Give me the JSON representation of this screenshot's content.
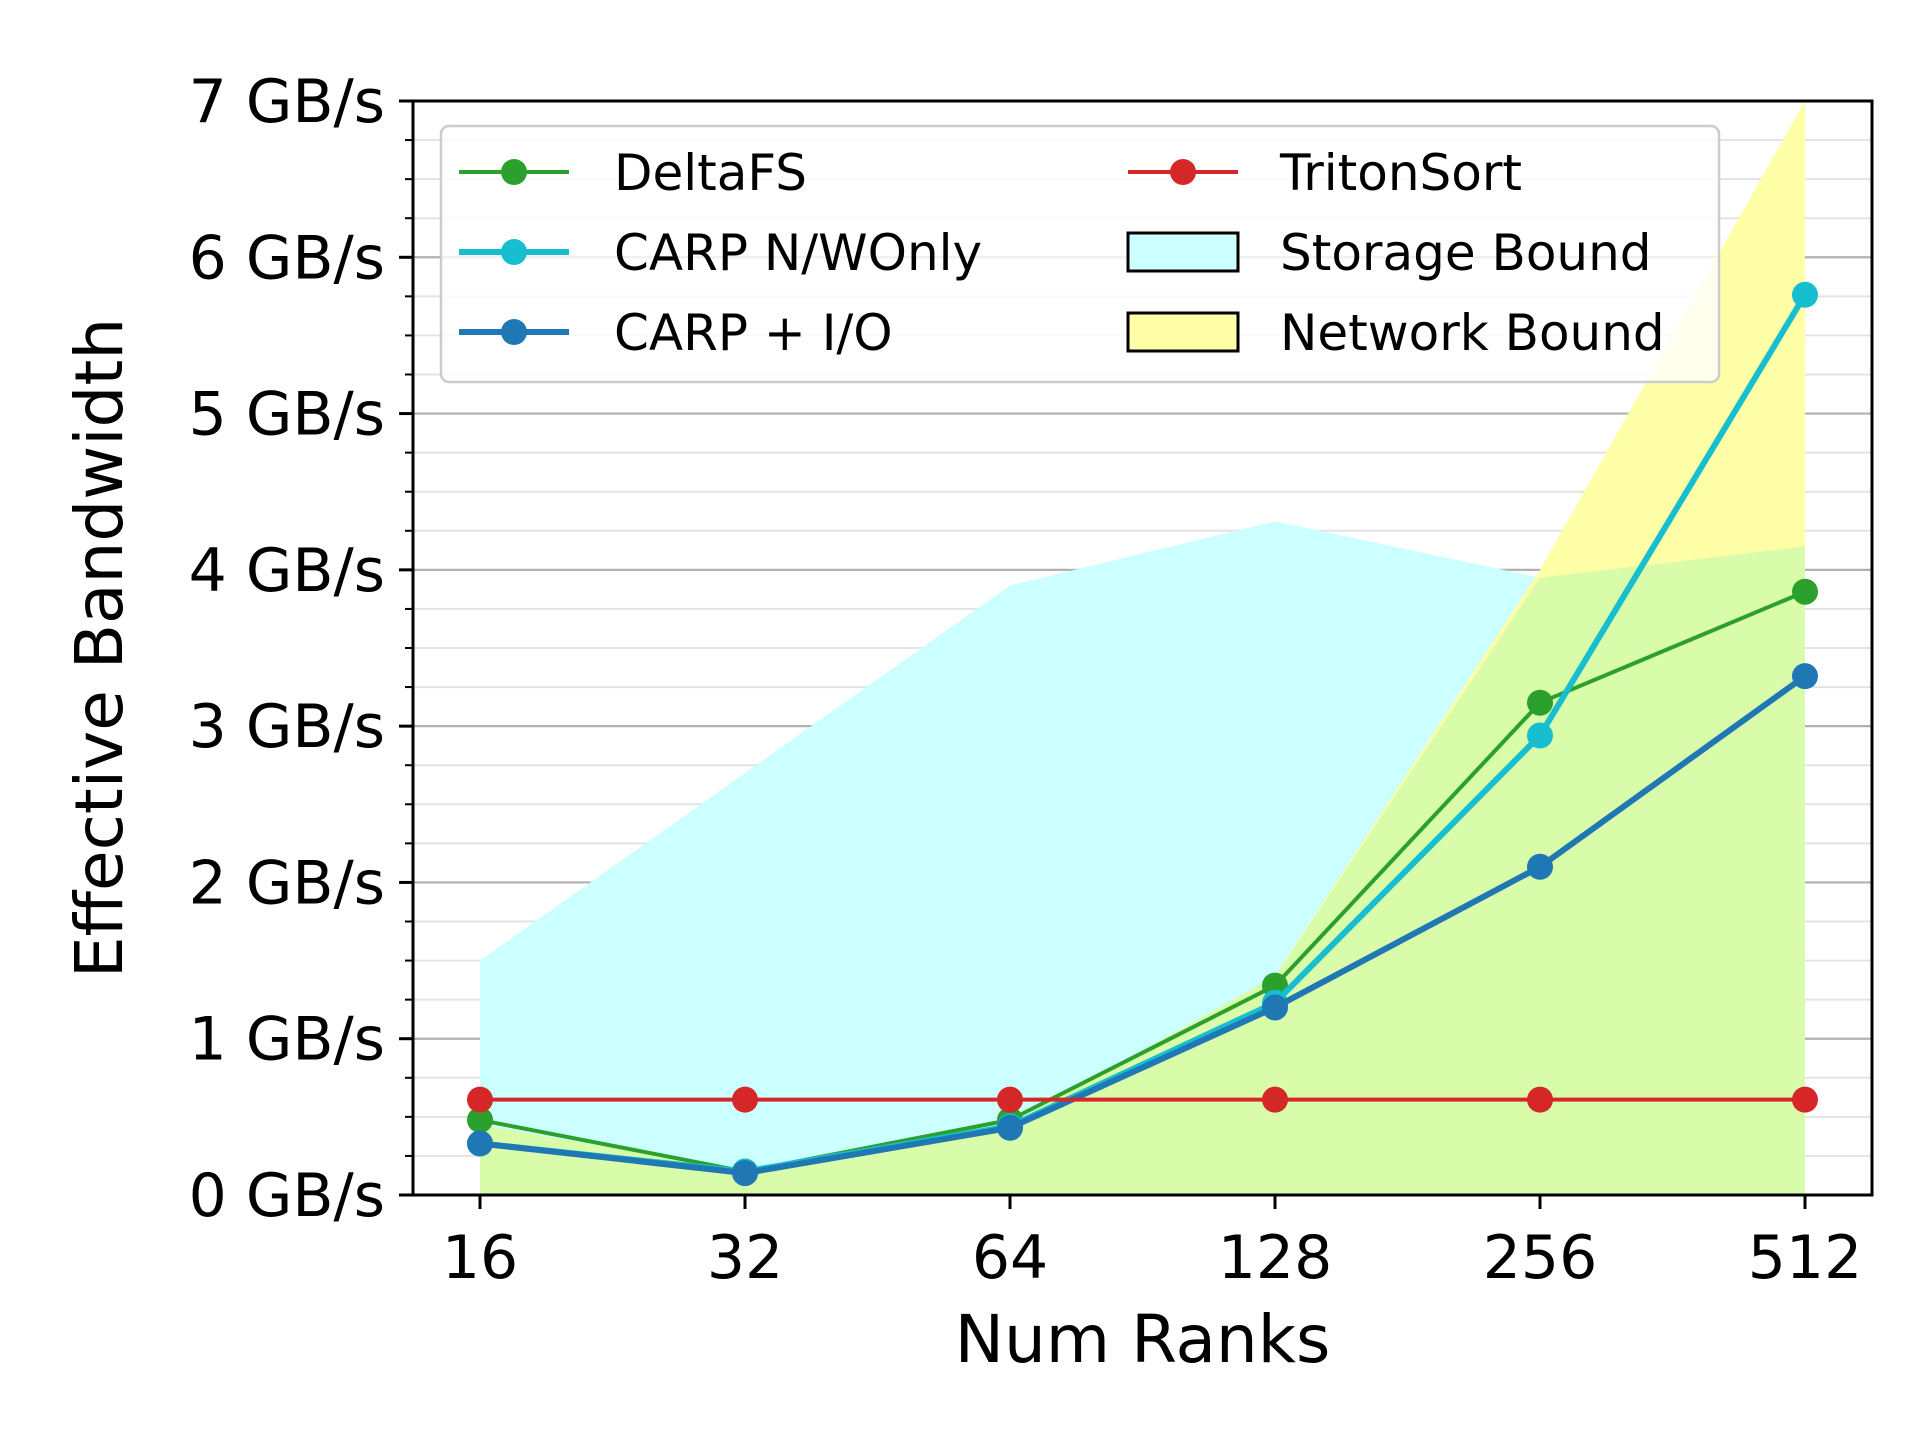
{
  "chart_data": {
    "type": "line",
    "xlabel": "Num Ranks",
    "ylabel": "Effective Bandwidth",
    "categories": [
      "16",
      "32",
      "64",
      "128",
      "256",
      "512"
    ],
    "y_tick_labels": [
      "0 GB/s",
      "1 GB/s",
      "2 GB/s",
      "3 GB/s",
      "4 GB/s",
      "5 GB/s",
      "6 GB/s",
      "7 GB/s"
    ],
    "ylim": [
      0,
      7
    ],
    "grid": "horizontal major and minor",
    "legend_placement": "top-left",
    "series": [
      {
        "name": "DeltaFS",
        "color": "#2ca02c",
        "marker": "circle",
        "values": [
          0.48,
          0.15,
          0.48,
          1.34,
          3.15,
          3.86
        ]
      },
      {
        "name": "CARP N/WOnly",
        "color": "#17becf",
        "marker": "circle",
        "values": [
          0.33,
          0.15,
          0.44,
          1.23,
          2.94,
          5.76
        ]
      },
      {
        "name": "CARP + I/O",
        "color": "#1f77b4",
        "marker": "circle",
        "values": [
          0.33,
          0.14,
          0.43,
          1.2,
          2.1,
          3.32
        ]
      },
      {
        "name": "TritonSort",
        "color": "#d62728",
        "marker": "circle",
        "values": [
          0.61,
          0.61,
          0.61,
          0.61,
          0.61,
          0.61
        ]
      }
    ],
    "areas": [
      {
        "name": "Storage Bound",
        "color": "#ccffff",
        "values": [
          1.5,
          2.7,
          3.9,
          4.31,
          3.95,
          4.15
        ]
      },
      {
        "name": "Network Bound",
        "color": "#ffffa8",
        "values": [
          0.45,
          0.15,
          0.45,
          1.4,
          4.0,
          7.0
        ]
      }
    ],
    "overlap_color": "#d8fcaa"
  }
}
